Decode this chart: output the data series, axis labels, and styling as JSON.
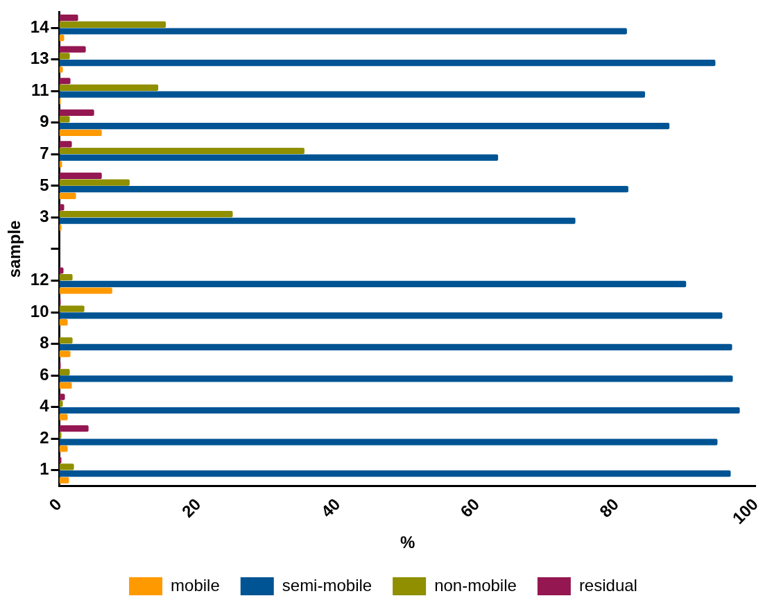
{
  "chart_data": {
    "type": "bar",
    "orientation": "horizontal",
    "xlabel": "%",
    "ylabel": "sample",
    "categories": [
      "14",
      "13",
      "11",
      "9",
      "7",
      "5",
      "3",
      null,
      "12",
      "10",
      "8",
      "6",
      "4",
      "2",
      "1"
    ],
    "series": [
      {
        "name": "mobile",
        "color": "#ff9900",
        "values": [
          0.7,
          0.5,
          0.2,
          6.1,
          0.4,
          2.4,
          0.3,
          null,
          7.6,
          1.2,
          1.6,
          1.8,
          1.2,
          1.2,
          1.4
        ]
      },
      {
        "name": "semi-mobile",
        "color": "#005493",
        "values": [
          81.5,
          94.2,
          84.1,
          87.6,
          63.0,
          81.7,
          74.1,
          null,
          90.0,
          95.2,
          96.6,
          96.7,
          97.7,
          94.5,
          96.4
        ]
      },
      {
        "name": "non-mobile",
        "color": "#8f8f00",
        "values": [
          15.3,
          1.5,
          14.2,
          1.5,
          35.2,
          10.1,
          24.9,
          null,
          1.9,
          3.6,
          1.9,
          1.5,
          0.5,
          0.3,
          2.1
        ]
      },
      {
        "name": "residual",
        "color": "#941751",
        "values": [
          2.7,
          3.8,
          1.6,
          5.0,
          1.8,
          6.1,
          0.7,
          null,
          0.6,
          0.2,
          null,
          0.2,
          0.8,
          4.2,
          0.3
        ]
      }
    ],
    "xlim": [
      0,
      100
    ],
    "xticks": [
      0,
      20,
      40,
      60,
      80,
      100
    ],
    "grid": false,
    "legend": "bottom"
  }
}
